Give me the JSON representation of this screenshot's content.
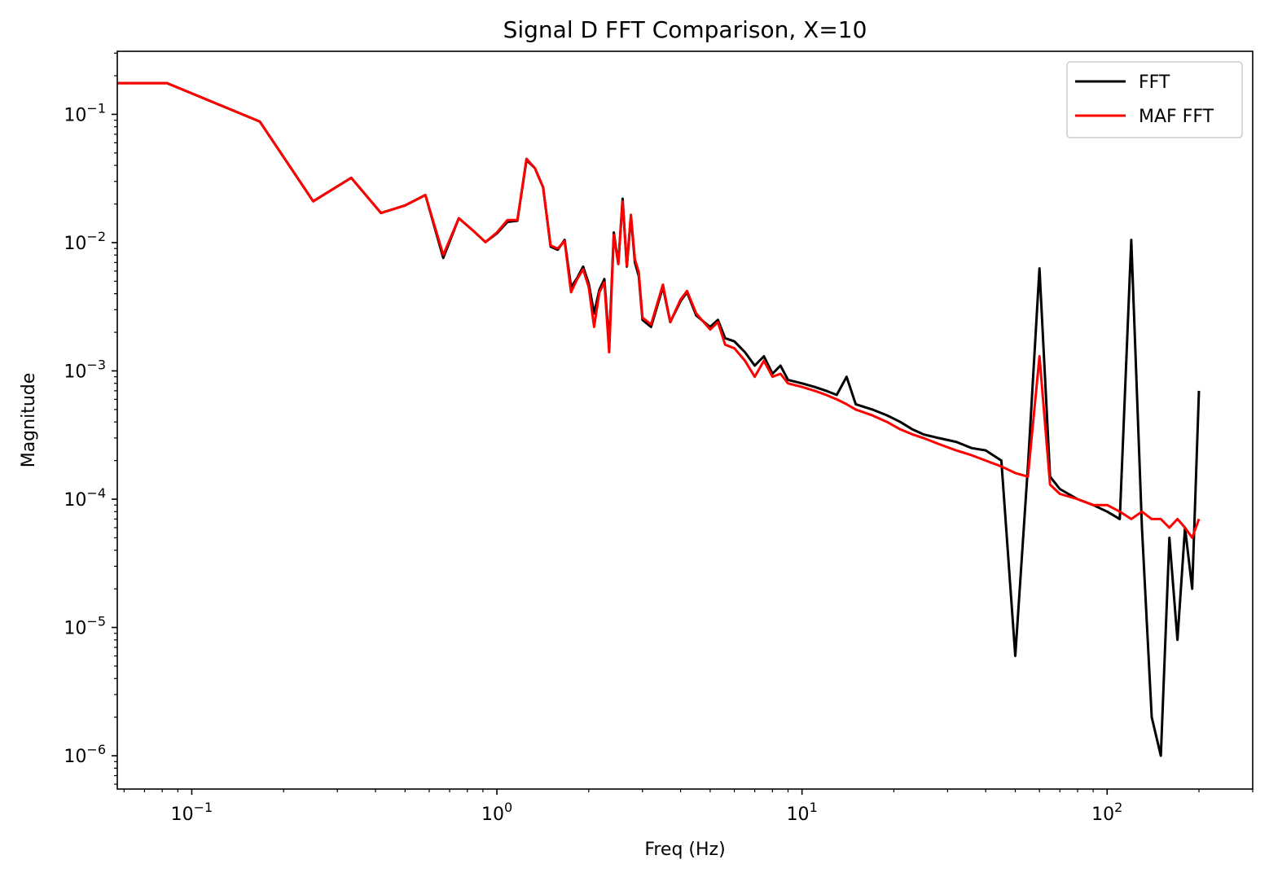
{
  "chart_data": {
    "type": "line",
    "title": "Signal D FFT Comparison, X=10",
    "xlabel": "Freq (Hz)",
    "ylabel": "Magnitude",
    "xscale": "log",
    "yscale": "log",
    "xlim": [
      0.057,
      300
    ],
    "ylim": [
      5.5e-07,
      0.31
    ],
    "grid": false,
    "legend": "top-right",
    "x_ticks": [
      {
        "base": "10",
        "exp": "−1",
        "value": 0.1
      },
      {
        "base": "10",
        "exp": "0",
        "value": 1
      },
      {
        "base": "10",
        "exp": "1",
        "value": 10
      },
      {
        "base": "10",
        "exp": "2",
        "value": 100
      }
    ],
    "y_ticks": [
      {
        "base": "10",
        "exp": "−6",
        "value": 1e-06
      },
      {
        "base": "10",
        "exp": "−5",
        "value": 1e-05
      },
      {
        "base": "10",
        "exp": "−4",
        "value": 0.0001
      },
      {
        "base": "10",
        "exp": "−3",
        "value": 0.001
      },
      {
        "base": "10",
        "exp": "−2",
        "value": 0.01
      },
      {
        "base": "10",
        "exp": "−1",
        "value": 0.1
      }
    ],
    "series": [
      {
        "name": "FFT",
        "color": "#000000",
        "x": [
          0.05,
          0.083,
          0.167,
          0.25,
          0.333,
          0.417,
          0.5,
          0.583,
          0.667,
          0.75,
          0.833,
          0.917,
          1.0,
          1.083,
          1.167,
          1.25,
          1.333,
          1.417,
          1.5,
          1.583,
          1.667,
          1.75,
          1.833,
          1.917,
          2.0,
          2.083,
          2.167,
          2.25,
          2.333,
          2.417,
          2.5,
          2.583,
          2.667,
          2.75,
          2.833,
          2.917,
          3.0,
          3.2,
          3.5,
          3.7,
          4.0,
          4.2,
          4.5,
          5.0,
          5.3,
          5.6,
          6.0,
          6.5,
          7.0,
          7.5,
          8.0,
          8.5,
          9.0,
          10.0,
          11.0,
          12.0,
          13.0,
          14.0,
          15.0,
          17.0,
          19.0,
          21.0,
          23.0,
          25.0,
          28.0,
          32.0,
          36.0,
          40.0,
          45.0,
          50.0,
          55.0,
          60.0,
          65.0,
          70.0,
          80.0,
          90.0,
          100.0,
          110.0,
          120.0,
          130.0,
          140.0,
          150.0,
          160.0,
          170.0,
          180.0,
          190.0,
          200.0
        ],
        "y": [
          0.175,
          0.175,
          0.088,
          0.021,
          0.032,
          0.017,
          0.0195,
          0.0235,
          0.0076,
          0.0155,
          0.0125,
          0.0101,
          0.0118,
          0.0145,
          0.0148,
          0.044,
          0.038,
          0.027,
          0.0093,
          0.0088,
          0.0105,
          0.0045,
          0.0053,
          0.0065,
          0.0048,
          0.0028,
          0.0043,
          0.0052,
          0.0016,
          0.012,
          0.0068,
          0.022,
          0.0065,
          0.016,
          0.007,
          0.0055,
          0.0025,
          0.0022,
          0.0045,
          0.0024,
          0.0035,
          0.0041,
          0.0027,
          0.0022,
          0.0025,
          0.0018,
          0.0017,
          0.0014,
          0.0011,
          0.0013,
          0.00095,
          0.0011,
          0.00085,
          0.0008,
          0.00075,
          0.0007,
          0.00065,
          0.0009,
          0.00055,
          0.0005,
          0.00045,
          0.0004,
          0.00035,
          0.00032,
          0.0003,
          0.00028,
          0.00025,
          0.00024,
          0.0002,
          6e-06,
          0.00018,
          0.0063,
          0.00015,
          0.00012,
          0.0001,
          9e-05,
          8e-05,
          7e-05,
          0.0105,
          6e-05,
          2e-06,
          1e-06,
          5e-05,
          8e-06,
          6e-05,
          2e-05,
          0.0007
        ]
      },
      {
        "name": "MAF FFT",
        "color": "#ff0000",
        "x": [
          0.05,
          0.083,
          0.167,
          0.25,
          0.333,
          0.417,
          0.5,
          0.583,
          0.667,
          0.75,
          0.833,
          0.917,
          1.0,
          1.083,
          1.167,
          1.25,
          1.333,
          1.417,
          1.5,
          1.583,
          1.667,
          1.75,
          1.833,
          1.917,
          2.0,
          2.083,
          2.167,
          2.25,
          2.333,
          2.417,
          2.5,
          2.583,
          2.667,
          2.75,
          2.833,
          2.917,
          3.0,
          3.2,
          3.5,
          3.7,
          4.0,
          4.2,
          4.5,
          5.0,
          5.3,
          5.6,
          6.0,
          6.5,
          7.0,
          7.5,
          8.0,
          8.5,
          9.0,
          10.0,
          11.0,
          12.0,
          13.0,
          14.0,
          15.0,
          17.0,
          19.0,
          21.0,
          23.0,
          25.0,
          28.0,
          32.0,
          36.0,
          40.0,
          45.0,
          50.0,
          55.0,
          60.0,
          65.0,
          70.0,
          80.0,
          90.0,
          100.0,
          110.0,
          120.0,
          130.0,
          140.0,
          150.0,
          160.0,
          170.0,
          180.0,
          190.0,
          200.0
        ],
        "y": [
          0.175,
          0.175,
          0.088,
          0.021,
          0.032,
          0.017,
          0.0195,
          0.0235,
          0.008,
          0.0155,
          0.0125,
          0.0101,
          0.012,
          0.015,
          0.015,
          0.045,
          0.038,
          0.027,
          0.0095,
          0.009,
          0.0103,
          0.0041,
          0.0052,
          0.0062,
          0.0045,
          0.0022,
          0.0041,
          0.0049,
          0.0014,
          0.0115,
          0.0068,
          0.021,
          0.0066,
          0.0165,
          0.0074,
          0.0059,
          0.0026,
          0.0023,
          0.0047,
          0.0024,
          0.0036,
          0.0042,
          0.0028,
          0.0021,
          0.0024,
          0.0016,
          0.0015,
          0.0012,
          0.0009,
          0.0012,
          0.0009,
          0.00095,
          0.0008,
          0.00075,
          0.0007,
          0.00065,
          0.0006,
          0.00055,
          0.0005,
          0.00045,
          0.0004,
          0.00035,
          0.00032,
          0.0003,
          0.00027,
          0.00024,
          0.00022,
          0.0002,
          0.00018,
          0.00016,
          0.00015,
          0.0013,
          0.00013,
          0.00011,
          0.0001,
          9e-05,
          9e-05,
          8e-05,
          7e-05,
          8e-05,
          7e-05,
          7e-05,
          6e-05,
          7e-05,
          6e-05,
          5e-05,
          7e-05
        ]
      }
    ]
  }
}
